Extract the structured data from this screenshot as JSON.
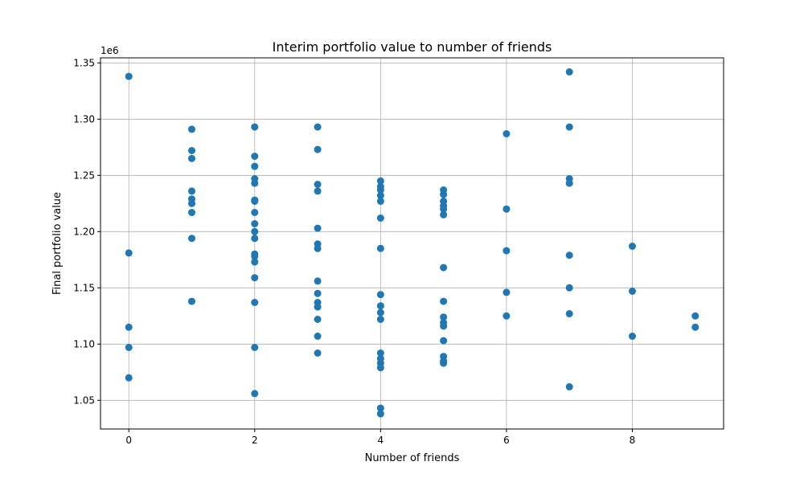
{
  "chart_data": {
    "type": "scatter",
    "title": "Interim portfolio value to number of friends",
    "xlabel": "Number of friends",
    "ylabel": "Final portfolio value",
    "y_scale_label": "1e6",
    "xlim": [
      -0.45,
      9.45
    ],
    "ylim": [
      1.0245,
      1.3545
    ],
    "x_ticks": [
      0,
      2,
      4,
      6,
      8
    ],
    "x_tick_labels": [
      "0",
      "2",
      "4",
      "6",
      "8"
    ],
    "y_ticks": [
      1.05,
      1.1,
      1.15,
      1.2,
      1.25,
      1.3,
      1.35
    ],
    "y_tick_labels": [
      "1.05",
      "1.10",
      "1.15",
      "1.20",
      "1.25",
      "1.30",
      "1.35"
    ],
    "grid": true,
    "marker_color": "#1f77b4",
    "series": [
      {
        "points": [
          [
            0,
            1.338
          ],
          [
            0,
            1.181
          ],
          [
            0,
            1.115
          ],
          [
            0,
            1.097
          ],
          [
            0,
            1.07
          ],
          [
            1,
            1.291
          ],
          [
            1,
            1.272
          ],
          [
            1,
            1.265
          ],
          [
            1,
            1.236
          ],
          [
            1,
            1.229
          ],
          [
            1,
            1.225
          ],
          [
            1,
            1.217
          ],
          [
            1,
            1.194
          ],
          [
            1,
            1.138
          ],
          [
            2,
            1.293
          ],
          [
            2,
            1.267
          ],
          [
            2,
            1.258
          ],
          [
            2,
            1.247
          ],
          [
            2,
            1.243
          ],
          [
            2,
            1.228
          ],
          [
            2,
            1.227
          ],
          [
            2,
            1.217
          ],
          [
            2,
            1.207
          ],
          [
            2,
            1.2
          ],
          [
            2,
            1.194
          ],
          [
            2,
            1.18
          ],
          [
            2,
            1.178
          ],
          [
            2,
            1.173
          ],
          [
            2,
            1.159
          ],
          [
            2,
            1.137
          ],
          [
            2,
            1.097
          ],
          [
            2,
            1.056
          ],
          [
            3,
            1.293
          ],
          [
            3,
            1.273
          ],
          [
            3,
            1.242
          ],
          [
            3,
            1.236
          ],
          [
            3,
            1.203
          ],
          [
            3,
            1.189
          ],
          [
            3,
            1.185
          ],
          [
            3,
            1.156
          ],
          [
            3,
            1.145
          ],
          [
            3,
            1.137
          ],
          [
            3,
            1.133
          ],
          [
            3,
            1.122
          ],
          [
            3,
            1.107
          ],
          [
            3,
            1.092
          ],
          [
            4,
            1.245
          ],
          [
            4,
            1.24
          ],
          [
            4,
            1.237
          ],
          [
            4,
            1.232
          ],
          [
            4,
            1.227
          ],
          [
            4,
            1.212
          ],
          [
            4,
            1.185
          ],
          [
            4,
            1.144
          ],
          [
            4,
            1.134
          ],
          [
            4,
            1.128
          ],
          [
            4,
            1.122
          ],
          [
            4,
            1.092
          ],
          [
            4,
            1.087
          ],
          [
            4,
            1.083
          ],
          [
            4,
            1.079
          ],
          [
            4,
            1.043
          ],
          [
            4,
            1.038
          ],
          [
            5,
            1.237
          ],
          [
            5,
            1.233
          ],
          [
            5,
            1.227
          ],
          [
            5,
            1.223
          ],
          [
            5,
            1.22
          ],
          [
            5,
            1.215
          ],
          [
            5,
            1.168
          ],
          [
            5,
            1.138
          ],
          [
            5,
            1.124
          ],
          [
            5,
            1.119
          ],
          [
            5,
            1.116
          ],
          [
            5,
            1.103
          ],
          [
            5,
            1.089
          ],
          [
            5,
            1.085
          ],
          [
            5,
            1.083
          ],
          [
            6,
            1.287
          ],
          [
            6,
            1.22
          ],
          [
            6,
            1.183
          ],
          [
            6,
            1.146
          ],
          [
            6,
            1.125
          ],
          [
            7,
            1.342
          ],
          [
            7,
            1.293
          ],
          [
            7,
            1.247
          ],
          [
            7,
            1.243
          ],
          [
            7,
            1.179
          ],
          [
            7,
            1.15
          ],
          [
            7,
            1.127
          ],
          [
            7,
            1.062
          ],
          [
            8,
            1.187
          ],
          [
            8,
            1.147
          ],
          [
            8,
            1.107
          ],
          [
            9,
            1.125
          ],
          [
            9,
            1.115
          ]
        ]
      }
    ]
  }
}
